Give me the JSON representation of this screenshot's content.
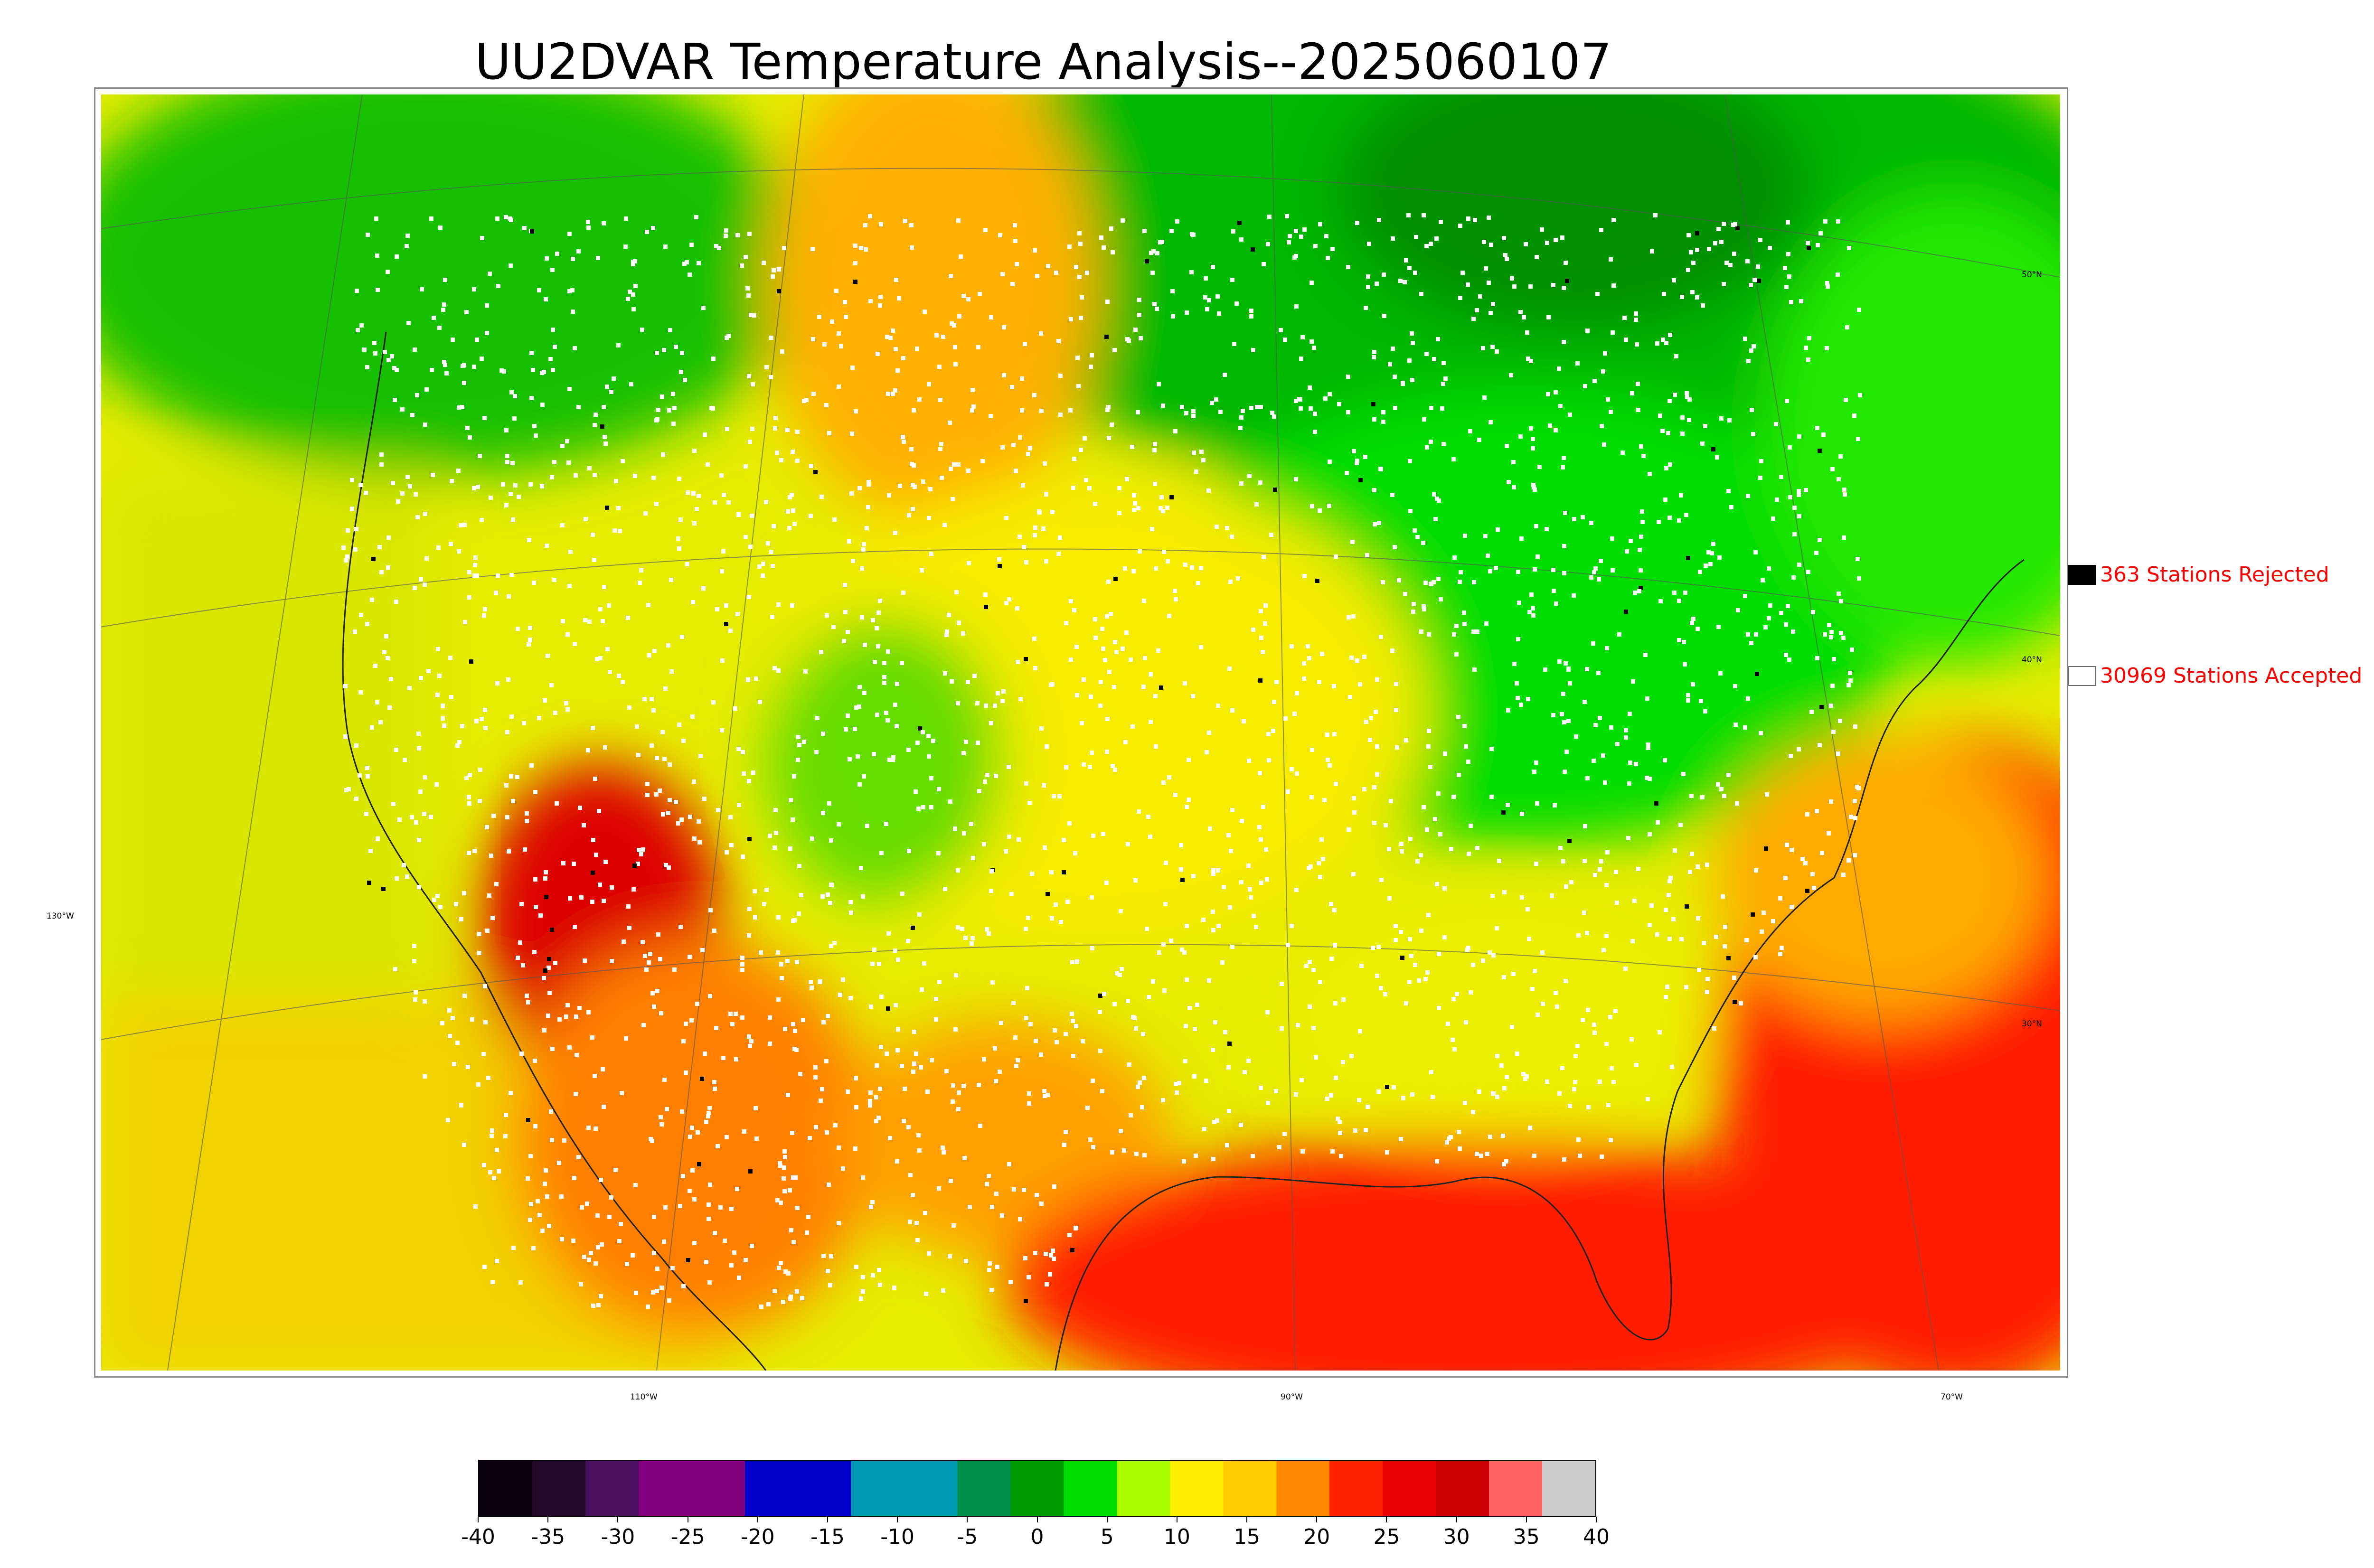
{
  "title": "UU2DVAR Temperature Analysis--2025060107",
  "legend": {
    "rejected": {
      "label": "363 Stations Rejected",
      "swatch": "#000000"
    },
    "accepted": {
      "label": "30969 Stations Accepted",
      "swatch": "#ffffff"
    },
    "text_color": "#ff0000"
  },
  "lon_labels": [
    "110°W",
    "90°W",
    "70°W"
  ],
  "lat_labels": [
    "50°N",
    "40°N",
    "130°W",
    "30°N"
  ],
  "colorbar": {
    "ticks": [
      "-40",
      "-35",
      "-30",
      "-25",
      "-20",
      "-15",
      "-10",
      "-5",
      "0",
      "5",
      "10",
      "15",
      "20",
      "25",
      "30",
      "35",
      "40"
    ],
    "colors": [
      "#0a0010",
      "#230a2a",
      "#4a1060",
      "#800080",
      "#800080",
      "#0000cc",
      "#0000cc",
      "#009bb3",
      "#009bb3",
      "#008f4a",
      "#009900",
      "#00dd00",
      "#aaff00",
      "#ffee00",
      "#ffcc00",
      "#ff8800",
      "#ff2200",
      "#e60000",
      "#cc0000",
      "#ff6060",
      "#cccccc"
    ]
  },
  "map": {
    "type": "temperature analysis map (CONUS)",
    "colors": {
      "ocean_warm": "#ff2200",
      "pacific": "#d4e400",
      "north": "#00cc00",
      "plains": "#f2ea00",
      "southwest": "#e00000"
    }
  }
}
